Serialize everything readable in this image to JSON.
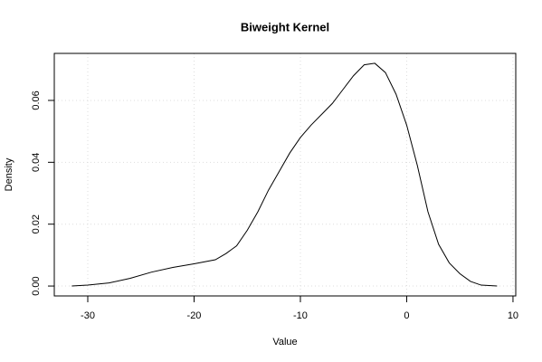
{
  "chart_data": {
    "type": "line",
    "title": "Biweight Kernel",
    "x_label": "Value",
    "y_label": "Density",
    "x": [
      -31.5,
      -30,
      -28,
      -26,
      -24,
      -22,
      -20,
      -18,
      -17,
      -16,
      -15,
      -14,
      -13,
      -12,
      -11,
      -10,
      -9,
      -8,
      -7,
      -6,
      -5,
      -4,
      -3,
      -2,
      -1,
      0,
      1,
      2,
      3,
      4,
      5,
      6,
      7,
      8.5
    ],
    "series": [
      {
        "color": "#000000",
        "values": [
          0,
          0.0003,
          0.001,
          0.0025,
          0.0045,
          0.006,
          0.0072,
          0.0085,
          0.0105,
          0.013,
          0.018,
          0.024,
          0.031,
          0.037,
          0.043,
          0.048,
          0.052,
          0.0555,
          0.059,
          0.0635,
          0.068,
          0.0715,
          0.072,
          0.069,
          0.062,
          0.052,
          0.039,
          0.024,
          0.0135,
          0.0075,
          0.004,
          0.0015,
          0.0003,
          0
        ]
      }
    ],
    "xlim": [
      -33.15,
      10.26
    ],
    "xticks": [
      -30,
      -20,
      -10,
      0,
      10
    ],
    "ylim": [
      -0.0032,
      0.0752
    ],
    "yticks": [
      {
        "value": 0,
        "label": "0.00"
      },
      {
        "value": 0.02,
        "label": "0.02"
      },
      {
        "value": 0.04,
        "label": "0.04"
      },
      {
        "value": 0.06,
        "label": "0.06"
      }
    ],
    "grid": true
  }
}
